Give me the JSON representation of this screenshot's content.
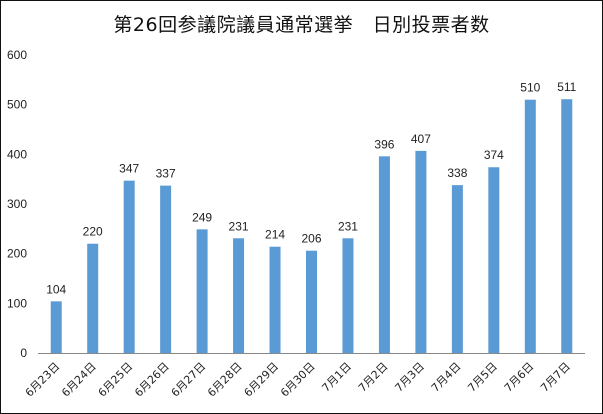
{
  "chart_data": {
    "type": "bar",
    "title": "第26回参議院議員通常選挙　日別投票者数",
    "xlabel": "",
    "ylabel": "",
    "categories": [
      "6月23日",
      "6月24日",
      "6月25日",
      "6月26日",
      "6月27日",
      "6月28日",
      "6月29日",
      "6月30日",
      "7月1日",
      "7月2日",
      "7月3日",
      "7月4日",
      "7月5日",
      "7月6日",
      "7月7日"
    ],
    "values": [
      104,
      220,
      347,
      337,
      249,
      231,
      214,
      206,
      231,
      396,
      407,
      338,
      374,
      510,
      511
    ],
    "ylim": [
      0,
      600
    ],
    "yticks": [
      0,
      100,
      200,
      300,
      400,
      500,
      600
    ],
    "grid": false,
    "legend": "none",
    "bar_color": "#5b9bd5",
    "axis_color": "#888888"
  }
}
